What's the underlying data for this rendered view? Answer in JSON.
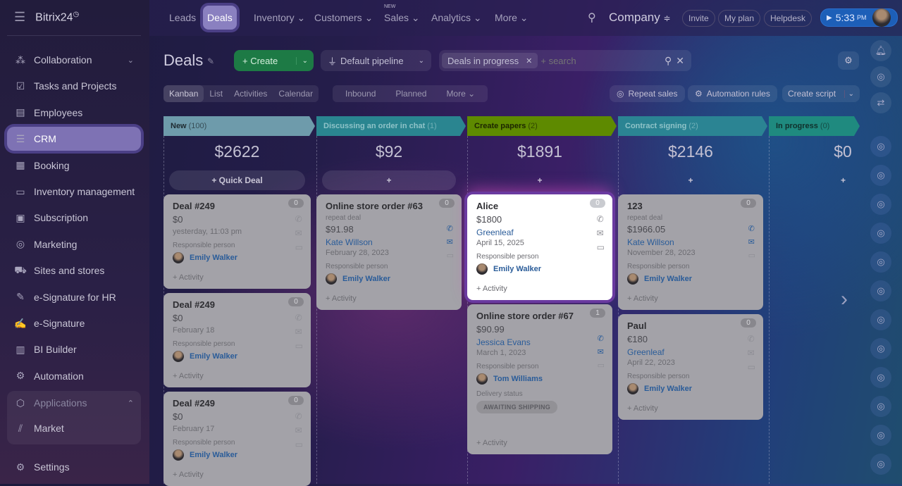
{
  "app": {
    "name": "Bitrix24",
    "logo_suffix": "◷"
  },
  "topnav": {
    "items": [
      {
        "label": "Leads"
      },
      {
        "label": "Deals",
        "active": true
      },
      {
        "label": "Inventory ⌄"
      },
      {
        "label": "Customers ⌄"
      },
      {
        "label": "Sales ⌄",
        "badge": "NEW"
      },
      {
        "label": "Analytics ⌄"
      },
      {
        "label": "More ⌄"
      }
    ],
    "company": "Company",
    "invite": "Invite",
    "my_plan": "My plan",
    "helpdesk": "Helpdesk",
    "time": "5:33",
    "ampm": "PM"
  },
  "sidebar": {
    "items": [
      {
        "label": "Collaboration",
        "icon": "collaboration-icon",
        "glyph": "⁂",
        "chevron": "⌄"
      },
      {
        "label": "Tasks and Projects",
        "icon": "tasks-icon",
        "glyph": "☑"
      },
      {
        "label": "Employees",
        "icon": "employees-icon",
        "glyph": "▤"
      },
      {
        "label": "CRM",
        "icon": "crm-icon",
        "glyph": "☰",
        "active": true
      },
      {
        "label": "Booking",
        "icon": "booking-icon",
        "glyph": "▦"
      },
      {
        "label": "Inventory management",
        "icon": "inventory-icon",
        "glyph": "▭"
      },
      {
        "label": "Subscription",
        "icon": "subscription-icon",
        "glyph": "▣"
      },
      {
        "label": "Marketing",
        "icon": "marketing-icon",
        "glyph": "◎"
      },
      {
        "label": "Sites and stores",
        "icon": "cart-icon",
        "glyph": "⛟"
      },
      {
        "label": "e-Signature for HR",
        "icon": "document-sign-icon",
        "glyph": "✎"
      },
      {
        "label": "e-Signature",
        "icon": "signature-icon",
        "glyph": "✍"
      },
      {
        "label": "BI Builder",
        "icon": "bar-chart-icon",
        "glyph": "▥"
      },
      {
        "label": "Automation",
        "icon": "robot-icon",
        "glyph": "⚙"
      }
    ],
    "applications": "Applications",
    "market": "Market",
    "settings": "Settings"
  },
  "page": {
    "title": "Deals",
    "create": "+ Create",
    "pipeline": "Default pipeline",
    "filter_tag": "Deals in progress",
    "search_placeholder": "+ search",
    "views": [
      "Kanban",
      "List",
      "Activities",
      "Calendar"
    ],
    "filters": [
      "Inbound",
      "Planned",
      "More ⌄"
    ],
    "repeat_sales": "Repeat sales",
    "automation_rules": "Automation rules",
    "create_script": "Create script"
  },
  "columns": [
    {
      "name": "New",
      "count": "(100)",
      "sum": "$2622",
      "add": "+ Quick Deal",
      "color": "#6e9bab",
      "text": "#1e2a30",
      "cards": [
        {
          "title": "Deal #249",
          "amount": "$0",
          "date": "yesterday, 11:03 pm",
          "badge": "0",
          "person": "Emily Walker",
          "responsible": "Responsible person",
          "activity": "+ Activity"
        },
        {
          "title": "Deal #249",
          "amount": "$0",
          "date": "February 18",
          "badge": "0",
          "person": "Emily Walker",
          "responsible": "Responsible person",
          "activity": "+ Activity"
        },
        {
          "title": "Deal #249",
          "amount": "$0",
          "date": "February 17",
          "badge": "0",
          "person": "Emily Walker",
          "responsible": "Responsible person",
          "activity": "+ Activity"
        }
      ]
    },
    {
      "name": "Discussing an order in chat",
      "count": "(1)",
      "sum": "$92",
      "add": "+",
      "color": "#2a8590",
      "text": "#8fc3c8",
      "cards": [
        {
          "title": "Online store order #63",
          "sub": "repeat deal",
          "amount": "$91.98",
          "client": "Kate Willson",
          "date": "February 28, 2023",
          "badge": "0",
          "person": "Emily Walker",
          "responsible": "Responsible person",
          "activity": "+ Activity",
          "active_icons": true
        }
      ]
    },
    {
      "name": "Create papers",
      "count": "(2)",
      "sum": "$1891",
      "add": "+",
      "color": "#5e8a00",
      "text": "#1c2600",
      "cards": [
        {
          "title": "Alice",
          "amount": "$1800",
          "client": "Greenleaf",
          "date": "April 15, 2025",
          "badge": "0",
          "person": "Emily Walker",
          "responsible": "Responsible person",
          "activity": "+ Activity",
          "highlight": true
        },
        {
          "title": "Online store order #67",
          "amount": "$90.99",
          "client": "Jessica Evans",
          "date": "March 1, 2023",
          "badge": "1",
          "person": "Tom Williams",
          "responsible": "Responsible person",
          "delivery_label": "Delivery status",
          "delivery": "AWAITING SHIPPING",
          "activity": "+ Activity",
          "active_icons": true
        }
      ]
    },
    {
      "name": "Contract signing",
      "count": "(2)",
      "sum": "$2146",
      "add": "+",
      "color": "#2b8493",
      "text": "#8fc3c8",
      "cards": [
        {
          "title": "123",
          "sub": "repeat deal",
          "amount": "$1966.05",
          "client": "Kate Willson",
          "date": "November 28, 2023",
          "badge": "0",
          "person": "Emily Walker",
          "responsible": "Responsible person",
          "activity": "+ Activity",
          "active_icons": true
        },
        {
          "title": "Paul",
          "amount": "€180",
          "client": "Greenleaf",
          "date": "April 22, 2023",
          "badge": "0",
          "person": "Emily Walker",
          "responsible": "Responsible person",
          "activity": "+ Activity"
        }
      ]
    },
    {
      "name": "In progress",
      "count": "(0)",
      "sum": "$0",
      "add": "+",
      "color": "#1f8a7f",
      "text": "#10302c",
      "cards": []
    }
  ]
}
